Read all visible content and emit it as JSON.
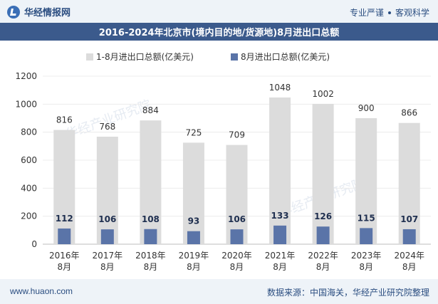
{
  "header": {
    "brand": "华经情报网",
    "slogan_left": "专业严谨",
    "slogan_right": "客观科学"
  },
  "footer": {
    "website": "www.huaon.com",
    "source": "数据来源：中国海关，华经产业研究院整理"
  },
  "chart_data": {
    "type": "bar",
    "title": "2016-2024年北京市(境内目的地/货源地)8月进出口总额",
    "categories": [
      "2016年8月",
      "2017年8月",
      "2018年8月",
      "2019年8月",
      "2020年8月",
      "2021年8月",
      "2022年8月",
      "2023年8月",
      "2024年8月"
    ],
    "category_lines": [
      [
        "2016年",
        "8月"
      ],
      [
        "2017年",
        "8月"
      ],
      [
        "2018年",
        "8月"
      ],
      [
        "2019年",
        "8月"
      ],
      [
        "2020年",
        "8月"
      ],
      [
        "2021年",
        "8月"
      ],
      [
        "2022年",
        "8月"
      ],
      [
        "2023年",
        "8月"
      ],
      [
        "2024年",
        "8月"
      ]
    ],
    "series": [
      {
        "name": "1-8月进出口总额(亿美元)",
        "values": [
          816,
          768,
          884,
          725,
          709,
          1048,
          1002,
          900,
          866
        ],
        "color": "#dcdcdc"
      },
      {
        "name": "8月进出口总额(亿美元)",
        "values": [
          112,
          106,
          108,
          93,
          106,
          133,
          126,
          115,
          107
        ],
        "color": "#5a74a8"
      }
    ],
    "ylim": [
      0,
      1200
    ],
    "yticks": [
      0,
      200,
      400,
      600,
      800,
      1000,
      1200
    ],
    "xlabel": "",
    "ylabel": "",
    "legend_position": "top-center",
    "watermark": "华经产业研究院"
  }
}
